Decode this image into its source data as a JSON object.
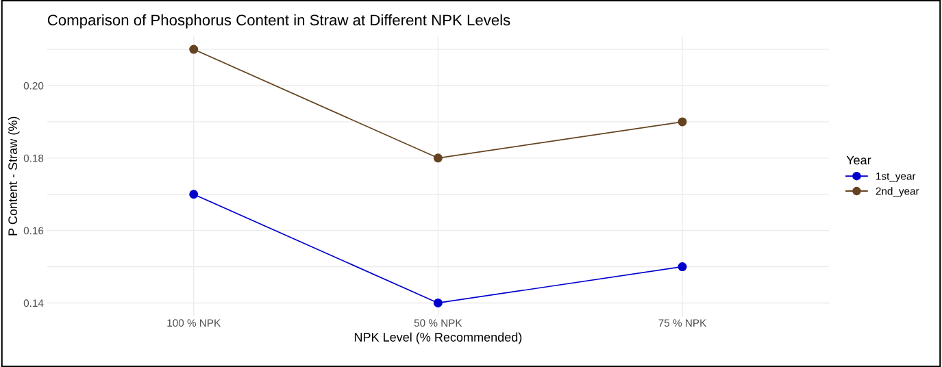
{
  "chart_data": {
    "type": "line",
    "title": "Comparison of Phosphorus Content in Straw at Different NPK Levels",
    "xlabel": "NPK Level (% Recommended)",
    "ylabel": "P Content - Straw (%)",
    "legend_title": "Year",
    "categories": [
      "100 % NPK",
      "50 % NPK",
      "75 % NPK"
    ],
    "series": [
      {
        "name": "1st_year",
        "color": "#0000cd",
        "values": [
          0.17,
          0.14,
          0.15
        ]
      },
      {
        "name": "2nd_year",
        "color": "#654321",
        "values": [
          0.21,
          0.18,
          0.19
        ]
      }
    ],
    "ylim": [
      0.1365,
      0.2135
    ],
    "yticks": [
      {
        "value": 0.14,
        "label": "0.14"
      },
      {
        "value": 0.15,
        "label": null
      },
      {
        "value": 0.16,
        "label": "0.16"
      },
      {
        "value": 0.17,
        "label": null
      },
      {
        "value": 0.18,
        "label": "0.18"
      },
      {
        "value": 0.19,
        "label": null
      },
      {
        "value": 0.2,
        "label": "0.20"
      },
      {
        "value": 0.21,
        "label": null
      }
    ],
    "grid": true,
    "legend": "right",
    "marker": "circle",
    "line_style": "solid"
  }
}
